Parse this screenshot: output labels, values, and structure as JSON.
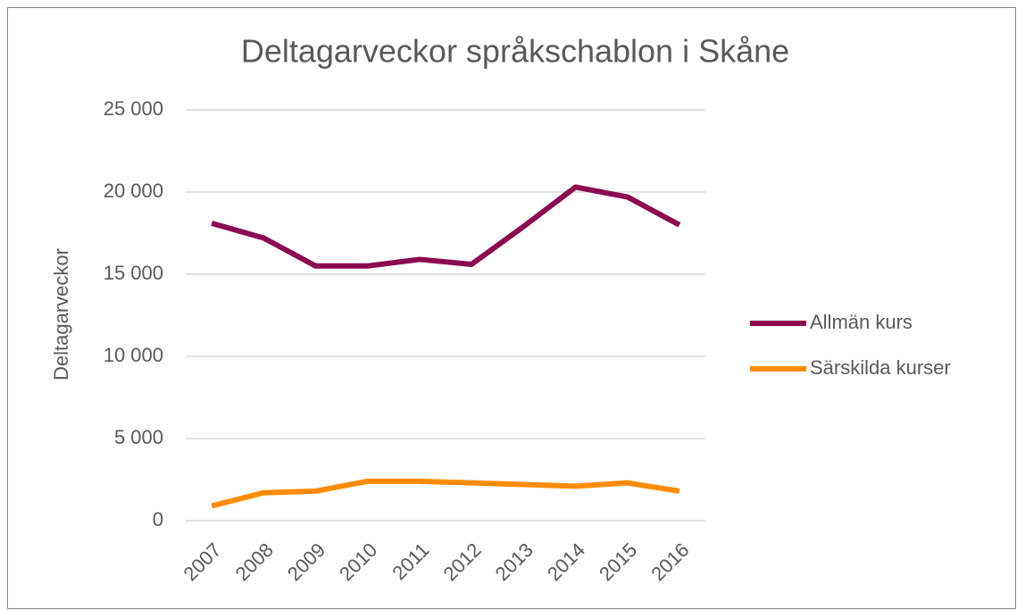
{
  "chart_data": {
    "type": "line",
    "title": "Deltagarveckor språkschablon i Skåne",
    "y_label": "Deltagarveckor",
    "categories": [
      "2007",
      "2008",
      "2009",
      "2010",
      "2011",
      "2012",
      "2013",
      "2014",
      "2015",
      "2016"
    ],
    "series": [
      {
        "name": "Allmän kurs",
        "color": "#8b0a50",
        "values": [
          18100,
          17200,
          15500,
          15500,
          15900,
          15600,
          17900,
          20300,
          19700,
          18000
        ]
      },
      {
        "name": "Särskilda kurser",
        "color": "#ff8c00",
        "values": [
          900,
          1700,
          1800,
          2400,
          2400,
          2300,
          2200,
          2100,
          2300,
          1800
        ]
      }
    ],
    "ylim": [
      0,
      25000
    ],
    "yticks": [
      0,
      {
        "value": 5000,
        "label": "5 000"
      },
      {
        "value": 10000,
        "label": "10 000"
      },
      {
        "value": 15000,
        "label": "15 000"
      },
      {
        "value": 20000,
        "label": "20 000"
      },
      {
        "value": 25000,
        "label": "25 000"
      }
    ],
    "grid": true,
    "legend": "right"
  }
}
